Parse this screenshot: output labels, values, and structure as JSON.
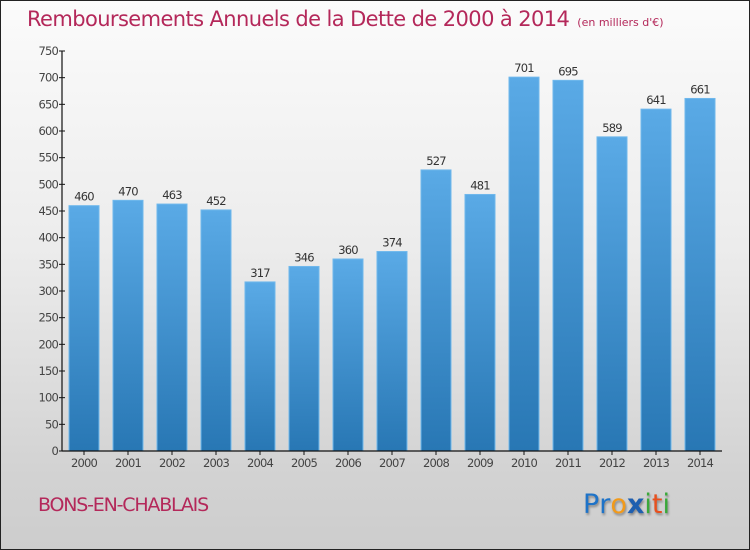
{
  "header": {
    "title": "Remboursements Annuels de la Dette de 2000 à 2014",
    "unit": "(en milliers d'€)"
  },
  "footer": {
    "commune": "BONS-EN-CHABLAIS",
    "logo_letters": [
      {
        "char": "P",
        "color": "#1e73c8"
      },
      {
        "char": "r",
        "color": "#1e73c8"
      },
      {
        "char": "o",
        "color": "#f29a1a"
      },
      {
        "char": "x",
        "color": "#1e5fb0"
      },
      {
        "char": "i",
        "color": "#3aa83a"
      },
      {
        "char": "t",
        "color": "#e8501e"
      },
      {
        "char": "i",
        "color": "#3aa83a"
      }
    ]
  },
  "colors": {
    "title": "#b4285a",
    "bar_top": "#5aaae6",
    "bar_bottom": "#2877b4",
    "axis": "#111111"
  },
  "chart_data": {
    "type": "bar",
    "title": "Remboursements Annuels de la Dette de 2000 à 2014",
    "subtitle": "(en milliers d'€)",
    "xlabel": "",
    "ylabel": "",
    "categories": [
      "2000",
      "2001",
      "2002",
      "2003",
      "2004",
      "2005",
      "2006",
      "2007",
      "2008",
      "2009",
      "2010",
      "2011",
      "2012",
      "2013",
      "2014"
    ],
    "values": [
      460,
      470,
      463,
      452,
      317,
      346,
      360,
      374,
      527,
      481,
      701,
      695,
      589,
      641,
      661
    ],
    "ylim": [
      0,
      750
    ],
    "yticks": [
      0,
      50,
      100,
      150,
      200,
      250,
      300,
      350,
      400,
      450,
      500,
      550,
      600,
      650,
      700,
      750
    ],
    "grid": false,
    "legend": "none",
    "data_labels": true
  }
}
